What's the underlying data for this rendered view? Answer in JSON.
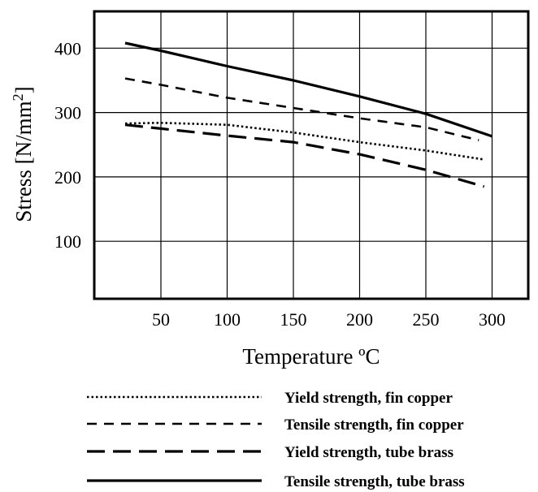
{
  "chart_data": {
    "type": "line",
    "title": "",
    "xlabel": "Temperature ºC",
    "ylabel": "Stress [N/mm²]",
    "ylabel_parts": {
      "main": "Stress [N/mm",
      "sup": "2",
      "close": "]"
    },
    "xlim": [
      0,
      320
    ],
    "ylim": [
      0,
      450
    ],
    "xticks": [
      50,
      100,
      150,
      200,
      250,
      300
    ],
    "yticks": [
      100,
      200,
      300,
      400
    ],
    "grid": true,
    "legend_position": "below",
    "series": [
      {
        "name": "Yield strength, fin copper",
        "style": "dotted",
        "x": [
          23,
          50,
          100,
          150,
          200,
          250,
          294
        ],
        "y": [
          283,
          284,
          281,
          269,
          254,
          241,
          227
        ]
      },
      {
        "name": "Tensile strength, fin copper",
        "style": "dashed",
        "x": [
          23,
          50,
          100,
          150,
          200,
          250,
          290
        ],
        "y": [
          353,
          343,
          323,
          307,
          291,
          277,
          257
        ]
      },
      {
        "name": "Yield strength, tube brass",
        "style": "long-dashed",
        "x": [
          23,
          50,
          100,
          150,
          200,
          250,
          294
        ],
        "y": [
          281,
          275,
          264,
          254,
          235,
          211,
          185
        ]
      },
      {
        "name": "Tensile strength, tube brass",
        "style": "solid",
        "x": [
          23,
          50,
          100,
          150,
          200,
          250,
          300
        ],
        "y": [
          408,
          396,
          372,
          350,
          325,
          298,
          263
        ]
      }
    ]
  },
  "colors": {
    "line": "#000000",
    "grid": "#000000",
    "background": "#ffffff"
  }
}
